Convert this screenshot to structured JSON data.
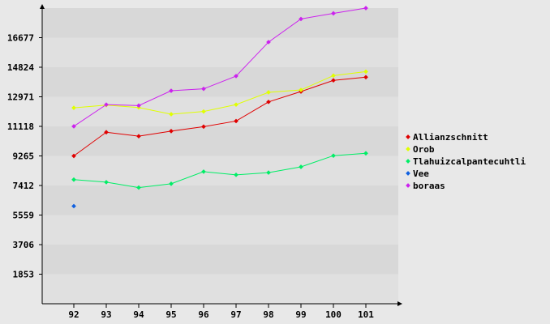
{
  "chart_data": {
    "type": "line",
    "title": "",
    "xlabel": "",
    "ylabel": "",
    "categories": [
      "92",
      "93",
      "94",
      "95",
      "96",
      "97",
      "98",
      "99",
      "100",
      "101"
    ],
    "y_ticks": [
      "1853",
      "3706",
      "5559",
      "7412",
      "9265",
      "11118",
      "12971",
      "14824",
      "16677"
    ],
    "ylim": [
      0,
      18530
    ],
    "grid": "horizontal bands",
    "legend_position": "right",
    "series": [
      {
        "name": "Allianzschnitt",
        "color": "#e00000",
        "values": [
          9265,
          10750,
          10500,
          10820,
          11100,
          11450,
          12650,
          13300,
          14000,
          14200
        ]
      },
      {
        "name": "Orob",
        "color": "#e0ff00",
        "values": [
          12280,
          12450,
          12300,
          11880,
          12050,
          12480,
          13250,
          13400,
          14300,
          14550
        ]
      },
      {
        "name": "Tlahuizcalpantecuhtli",
        "color": "#00ee66",
        "values": [
          7780,
          7620,
          7280,
          7520,
          8280,
          8080,
          8220,
          8580,
          9280,
          9430
        ]
      },
      {
        "name": "Vee",
        "color": "#1060e0",
        "values": [
          6120,
          null,
          null,
          null,
          null,
          null,
          null,
          null,
          null,
          null
        ]
      },
      {
        "name": "boraas",
        "color": "#cc22ee",
        "values": [
          11120,
          12480,
          12420,
          13350,
          13470,
          14270,
          16400,
          17850,
          18200,
          18530
        ]
      }
    ]
  }
}
